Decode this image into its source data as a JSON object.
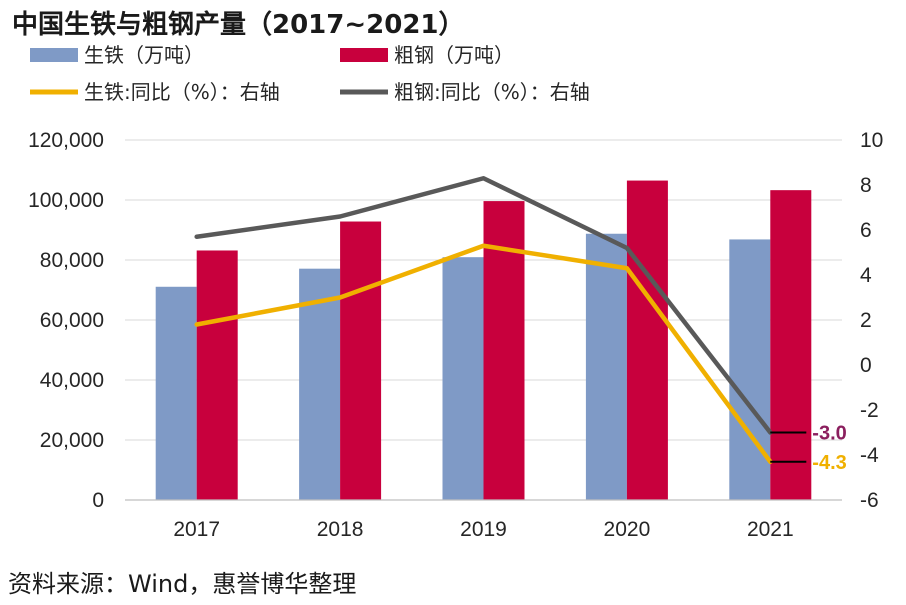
{
  "title": "中国生铁与粗钢产量（2017~2021）",
  "source": "资料来源：Wind，惠誉博华整理",
  "colors": {
    "pig_iron_bar": "#7f9ac6",
    "crude_steel_bar": "#c8003d",
    "pig_iron_line": "#f0b000",
    "crude_steel_line": "#595959",
    "anno_steel": "#8b1f5e",
    "anno_iron": "#f0b000",
    "gridline": "#d9d9d9"
  },
  "chart_data": {
    "type": "bar",
    "categories": [
      "2017",
      "2018",
      "2019",
      "2020",
      "2021"
    ],
    "series": [
      {
        "name": "生铁（万吨）",
        "kind": "bar",
        "axis": "left",
        "values": [
          71076,
          77105,
          80937,
          88752,
          86857
        ]
      },
      {
        "name": "粗钢（万吨）",
        "kind": "bar",
        "axis": "left",
        "values": [
          83173,
          92826,
          99634,
          106477,
          103279
        ]
      },
      {
        "name": "生铁:同比（%）：右轴",
        "kind": "line",
        "axis": "right",
        "values": [
          1.8,
          3.0,
          5.3,
          4.3,
          -4.3
        ]
      },
      {
        "name": "粗钢:同比（%）：右轴",
        "kind": "line",
        "axis": "right",
        "values": [
          5.7,
          6.6,
          8.3,
          5.2,
          -3.0
        ]
      }
    ],
    "y_left": {
      "min": 0,
      "max": 120000,
      "step": 20000,
      "tick_labels": [
        "0",
        "20,000",
        "40,000",
        "60,000",
        "80,000",
        "100,000",
        "120,000"
      ]
    },
    "y_right": {
      "min": -6,
      "max": 10,
      "step": 2,
      "tick_labels": [
        "-6",
        "-4",
        "-2",
        "0",
        "2",
        "4",
        "6",
        "8",
        "10"
      ]
    },
    "annotations": [
      {
        "series": 3,
        "category": 4,
        "text": "-3.0"
      },
      {
        "series": 2,
        "category": 4,
        "text": "-4.3"
      }
    ],
    "grid": true,
    "legend": "top"
  }
}
